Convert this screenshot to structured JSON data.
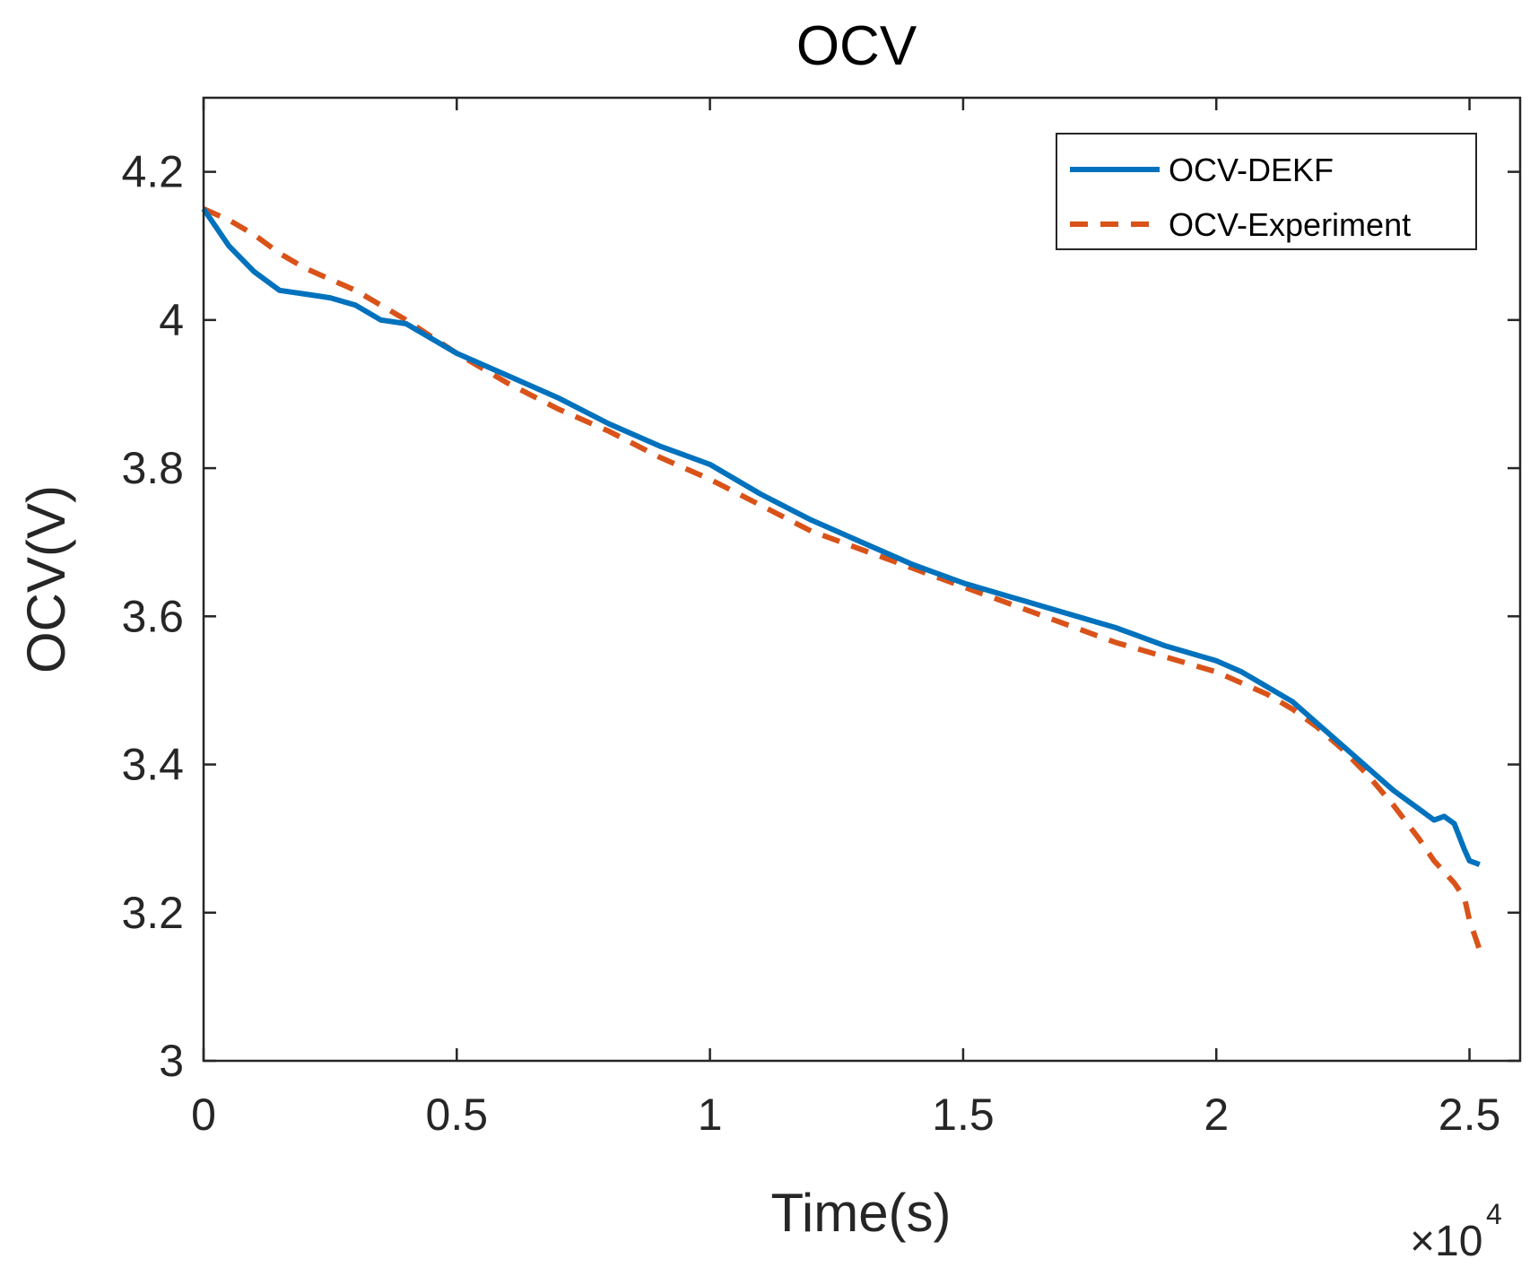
{
  "chart_data": {
    "type": "line",
    "title": "OCV",
    "xlabel": "Time(s)",
    "ylabel": "OCV(V)",
    "x_multiplier": {
      "base": "10",
      "exponent": "4",
      "symbol": "×"
    },
    "xlim": [
      0,
      2.6
    ],
    "ylim": [
      3.0,
      4.3
    ],
    "xticks": [
      0,
      0.5,
      1,
      1.5,
      2,
      2.5
    ],
    "xtick_labels": [
      "0",
      "0.5",
      "1",
      "1.5",
      "2",
      "2.5"
    ],
    "yticks": [
      3.0,
      3.2,
      3.4,
      3.6,
      3.8,
      4.0,
      4.2
    ],
    "ytick_labels": [
      "3",
      "3.2",
      "3.4",
      "3.6",
      "3.8",
      "4",
      "4.2"
    ],
    "grid": false,
    "legend_position": "top-right",
    "series": [
      {
        "name": "OCV-DEKF",
        "color": "#0072BD",
        "style": "solid",
        "x": [
          0,
          0.05,
          0.1,
          0.15,
          0.2,
          0.25,
          0.3,
          0.35,
          0.4,
          0.5,
          0.6,
          0.7,
          0.8,
          0.9,
          1.0,
          1.1,
          1.2,
          1.3,
          1.4,
          1.5,
          1.6,
          1.7,
          1.8,
          1.9,
          2.0,
          2.05,
          2.1,
          2.15,
          2.2,
          2.25,
          2.3,
          2.35,
          2.4,
          2.43,
          2.45,
          2.47,
          2.49,
          2.5,
          2.52
        ],
        "y": [
          4.15,
          4.1,
          4.065,
          4.04,
          4.035,
          4.03,
          4.02,
          4.0,
          3.995,
          3.955,
          3.925,
          3.895,
          3.86,
          3.83,
          3.805,
          3.765,
          3.73,
          3.7,
          3.67,
          3.645,
          3.625,
          3.605,
          3.585,
          3.56,
          3.54,
          3.525,
          3.505,
          3.485,
          3.455,
          3.425,
          3.395,
          3.365,
          3.34,
          3.325,
          3.33,
          3.32,
          3.285,
          3.27,
          3.265
        ]
      },
      {
        "name": "OCV-Experiment",
        "color": "#D95319",
        "style": "dashed",
        "x": [
          0,
          0.05,
          0.1,
          0.15,
          0.2,
          0.25,
          0.3,
          0.35,
          0.4,
          0.5,
          0.6,
          0.7,
          0.8,
          0.9,
          1.0,
          1.1,
          1.2,
          1.3,
          1.4,
          1.5,
          1.6,
          1.7,
          1.8,
          1.9,
          2.0,
          2.05,
          2.1,
          2.15,
          2.2,
          2.25,
          2.3,
          2.35,
          2.4,
          2.43,
          2.45,
          2.47,
          2.49,
          2.5,
          2.52
        ],
        "y": [
          4.15,
          4.135,
          4.115,
          4.09,
          4.07,
          4.055,
          4.04,
          4.02,
          4.0,
          3.955,
          3.915,
          3.88,
          3.85,
          3.815,
          3.785,
          3.75,
          3.715,
          3.69,
          3.665,
          3.64,
          3.615,
          3.59,
          3.565,
          3.545,
          3.525,
          3.51,
          3.495,
          3.475,
          3.45,
          3.42,
          3.385,
          3.345,
          3.3,
          3.27,
          3.255,
          3.24,
          3.22,
          3.19,
          3.15
        ]
      }
    ]
  }
}
